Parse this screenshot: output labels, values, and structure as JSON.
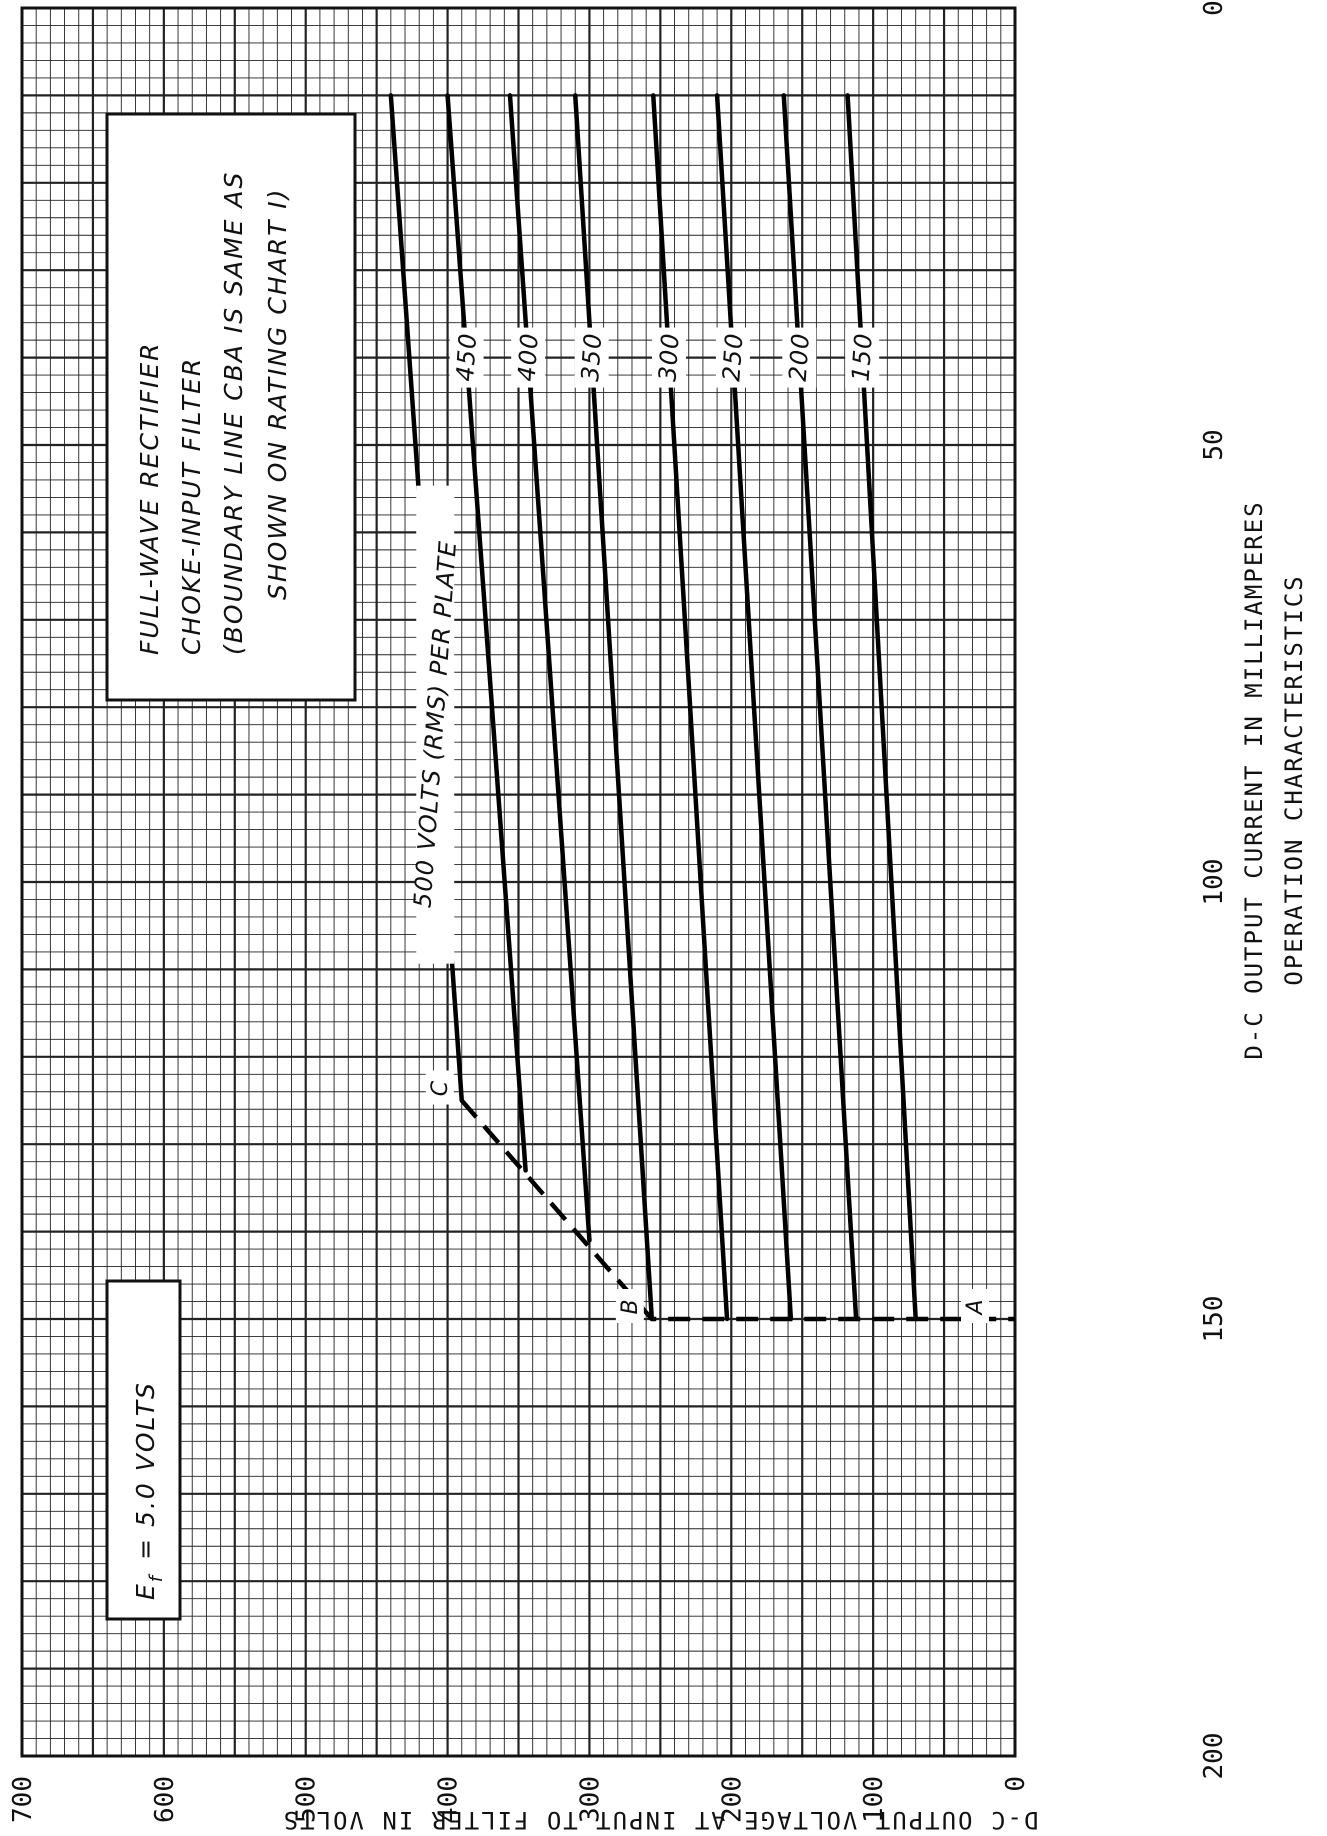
{
  "chart_data": {
    "type": "line",
    "title": "OPERATION CHARACTERISTICS",
    "xlabel": "D-C OUTPUT CURRENT IN MILLIAMPERES",
    "ylabel": "D-C OUTPUT VOLTAGE AT INPUT TO FILTER IN VOLTS",
    "xlim": [
      0,
      200
    ],
    "ylim": [
      0,
      700
    ],
    "x_ticks": [
      "0",
      "50",
      "100",
      "150",
      "200"
    ],
    "y_ticks": [
      "100",
      "200",
      "300",
      "400",
      "500",
      "600",
      "700"
    ],
    "grid": true,
    "notes": {
      "ef": "E f = 5.0 VOLTS",
      "ef_main": "E",
      "ef_sub": "f",
      "ef_rest": "= 5.0 VOLTS",
      "box_lines": [
        "FULL-WAVE RECTIFIER",
        "CHOKE-INPUT FILTER",
        "(BOUNDARY LINE CBA IS SAME AS",
        "SHOWN ON RATING CHART I)"
      ]
    },
    "series": [
      {
        "name": "500 VOLTS (RMS) PER PLATE",
        "x": [
          10,
          125
        ],
        "y": [
          440,
          390
        ]
      },
      {
        "name": "450",
        "x": [
          10,
          133
        ],
        "y": [
          400,
          345
        ]
      },
      {
        "name": "400",
        "x": [
          10,
          141
        ],
        "y": [
          356,
          300
        ]
      },
      {
        "name": "350",
        "x": [
          10,
          150
        ],
        "y": [
          310,
          256
        ]
      },
      {
        "name": "300",
        "x": [
          10,
          150
        ],
        "y": [
          255,
          203
        ]
      },
      {
        "name": "250",
        "x": [
          10,
          150
        ],
        "y": [
          210,
          158
        ]
      },
      {
        "name": "200",
        "x": [
          10,
          150
        ],
        "y": [
          163,
          112
        ]
      },
      {
        "name": "150",
        "x": [
          10,
          150
        ],
        "y": [
          118,
          70
        ]
      }
    ],
    "boundary": {
      "name": "CBA",
      "x": [
        125,
        150,
        150
      ],
      "y": [
        390,
        256,
        0
      ],
      "labels": [
        "C",
        "B",
        "A"
      ]
    }
  }
}
